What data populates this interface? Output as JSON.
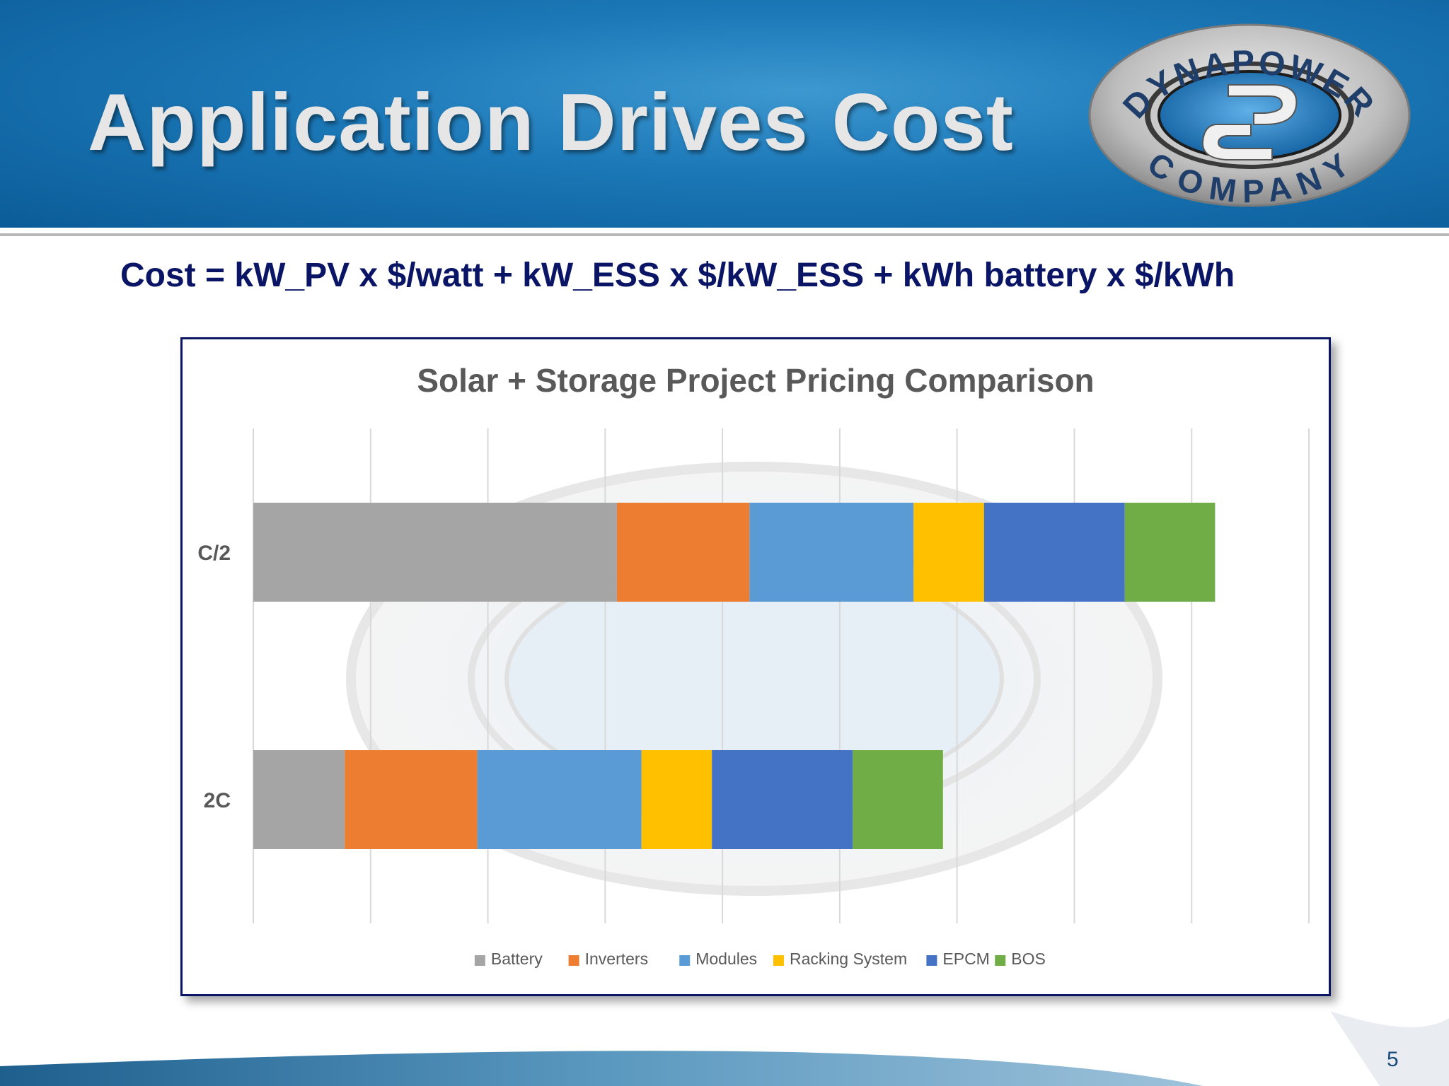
{
  "slide": {
    "title": "Application Drives Cost",
    "formula": "Cost = kW_PV x $/watt + kW_ESS x $/kW_ESS + kWh battery x $/kWh",
    "page_number": "5"
  },
  "logo": {
    "text_top": "DYNAPOWER",
    "text_bottom": "COMPANY"
  },
  "colors": {
    "header_blue": "#1d79b8",
    "formula_navy": "#0b1566",
    "battery": "#a5a5a5",
    "inverters": "#ed7d31",
    "modules": "#5b9bd5",
    "racking": "#ffc000",
    "epcm": "#4472c4",
    "bos": "#70ad47"
  },
  "chart_data": {
    "type": "bar",
    "orientation": "horizontal",
    "stacked": true,
    "title": "Solar + Storage Project Pricing Comparison",
    "categories": [
      "C/2",
      "2C"
    ],
    "series": [
      {
        "name": "Battery",
        "values": [
          3.1,
          0.78
        ]
      },
      {
        "name": "Inverters",
        "values": [
          1.13,
          1.13
        ]
      },
      {
        "name": "Modules",
        "values": [
          1.4,
          1.4
        ]
      },
      {
        "name": "Racking System",
        "values": [
          0.6,
          0.6
        ]
      },
      {
        "name": "EPCM",
        "values": [
          1.2,
          1.2
        ]
      },
      {
        "name": "BOS",
        "values": [
          0.77,
          0.77
        ]
      }
    ],
    "xlim": [
      0,
      9
    ],
    "tick_labels_shown": false,
    "grid": true,
    "legend": "bottom"
  }
}
